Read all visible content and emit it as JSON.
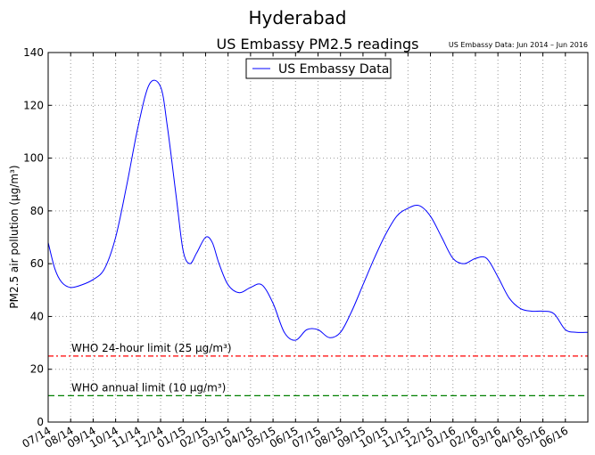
{
  "figure": {
    "suptitle": "Hyderabad",
    "title": "US Embassy PM2.5 readings",
    "source_note": "US Embassy Data: Jun 2014 – Jun 2016"
  },
  "colors": {
    "series": "#0000ff",
    "who_24h": "#ff0000",
    "who_annual": "#008000",
    "grid": "#999999"
  },
  "chart_data": {
    "type": "line",
    "title": "US Embassy PM2.5 readings",
    "xlabel": "",
    "ylabel": "PM2.5 air pollution (µg/m³)",
    "ylim": [
      0,
      140
    ],
    "yticks": [
      0,
      20,
      40,
      60,
      80,
      100,
      120,
      140
    ],
    "xlim": [
      0,
      24
    ],
    "grid": true,
    "legend_position": "top-center",
    "x_tick_labels": [
      "07/14",
      "08/14",
      "09/14",
      "10/14",
      "11/14",
      "12/14",
      "01/15",
      "02/15",
      "03/15",
      "04/15",
      "05/15",
      "06/15",
      "07/15",
      "08/15",
      "09/15",
      "10/15",
      "11/15",
      "12/15",
      "01/16",
      "02/16",
      "03/16",
      "04/16",
      "05/16",
      "06/16"
    ],
    "series": [
      {
        "name": "US Embassy Data",
        "x": [
          0,
          0.3,
          0.6,
          1.0,
          1.5,
          2.0,
          2.5,
          3.0,
          3.5,
          4.0,
          4.5,
          5.0,
          5.3,
          5.7,
          6.0,
          6.3,
          6.6,
          7.0,
          7.3,
          7.6,
          8.0,
          8.5,
          9.0,
          9.5,
          10.0,
          10.5,
          11.0,
          11.5,
          12.0,
          12.5,
          13.0,
          13.5,
          14.0,
          14.5,
          15.0,
          15.5,
          16.0,
          16.5,
          17.0,
          17.5,
          18.0,
          18.5,
          19.0,
          19.5,
          20.0,
          20.5,
          21.0,
          21.5,
          22.0,
          22.5,
          23.0,
          23.5,
          24.0
        ],
        "y": [
          68,
          58,
          53,
          51,
          52,
          54,
          58,
          70,
          90,
          112,
          128,
          127,
          112,
          85,
          65,
          60,
          64,
          70,
          68,
          60,
          52,
          49,
          51,
          52,
          45,
          34,
          31,
          35,
          35,
          32,
          34,
          42,
          52,
          62,
          71,
          78,
          81,
          82,
          78,
          70,
          62,
          60,
          62,
          62,
          55,
          47,
          43,
          42,
          42,
          41,
          35,
          34,
          34
        ]
      }
    ],
    "reference_lines": [
      {
        "label": "WHO 24-hour limit (25 µg/m³)",
        "y": 25,
        "style": "dash-dot",
        "color": "#ff0000"
      },
      {
        "label": "WHO annual limit (10 µg/m³)",
        "y": 10,
        "style": "dashed",
        "color": "#008000"
      }
    ]
  }
}
